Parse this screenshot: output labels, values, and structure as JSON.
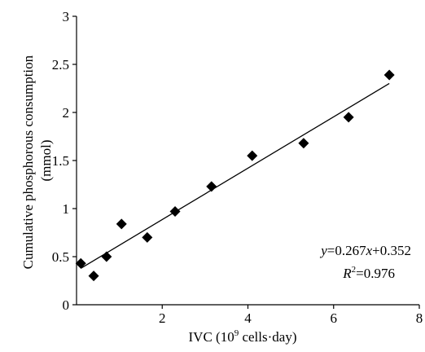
{
  "chart_data": {
    "type": "scatter",
    "title": "",
    "xlabel": "IVC (10",
    "xlabel_sup": "9",
    "xlabel_rest": " cells·day)",
    "ylabel_line1": "Cumulative phosphorous consumption",
    "ylabel_line2": "(mmol)",
    "xlim": [
      0,
      8
    ],
    "ylim": [
      0,
      3
    ],
    "x_ticks": [
      2,
      4,
      6,
      8
    ],
    "x_tick_labels": [
      "2",
      "4",
      "6",
      "8"
    ],
    "y_ticks": [
      0,
      0.5,
      1,
      1.5,
      2,
      2.5,
      3
    ],
    "y_tick_labels": [
      "0",
      "0.5",
      "1",
      "1.5",
      "2",
      "2.5",
      "3"
    ],
    "grid": false,
    "series": [
      {
        "marker": "diamond",
        "color": "#000000",
        "x": [
          0.1,
          0.4,
          0.7,
          1.05,
          1.65,
          2.3,
          3.15,
          4.1,
          5.3,
          6.35,
          7.3
        ],
        "y": [
          0.43,
          0.3,
          0.5,
          0.84,
          0.7,
          0.97,
          1.23,
          1.55,
          1.68,
          1.95,
          2.39
        ]
      }
    ],
    "trendline": {
      "slope": 0.267,
      "intercept": 0.352,
      "x_range": [
        0.1,
        7.3
      ],
      "color": "#000000"
    },
    "annotation": {
      "eq_y": "y",
      "eq_rest": "=0.267",
      "eq_x": "x",
      "eq_end": "+0.352",
      "r2_R": "R",
      "r2_sup": "2",
      "r2_rest": "=0.976"
    }
  }
}
